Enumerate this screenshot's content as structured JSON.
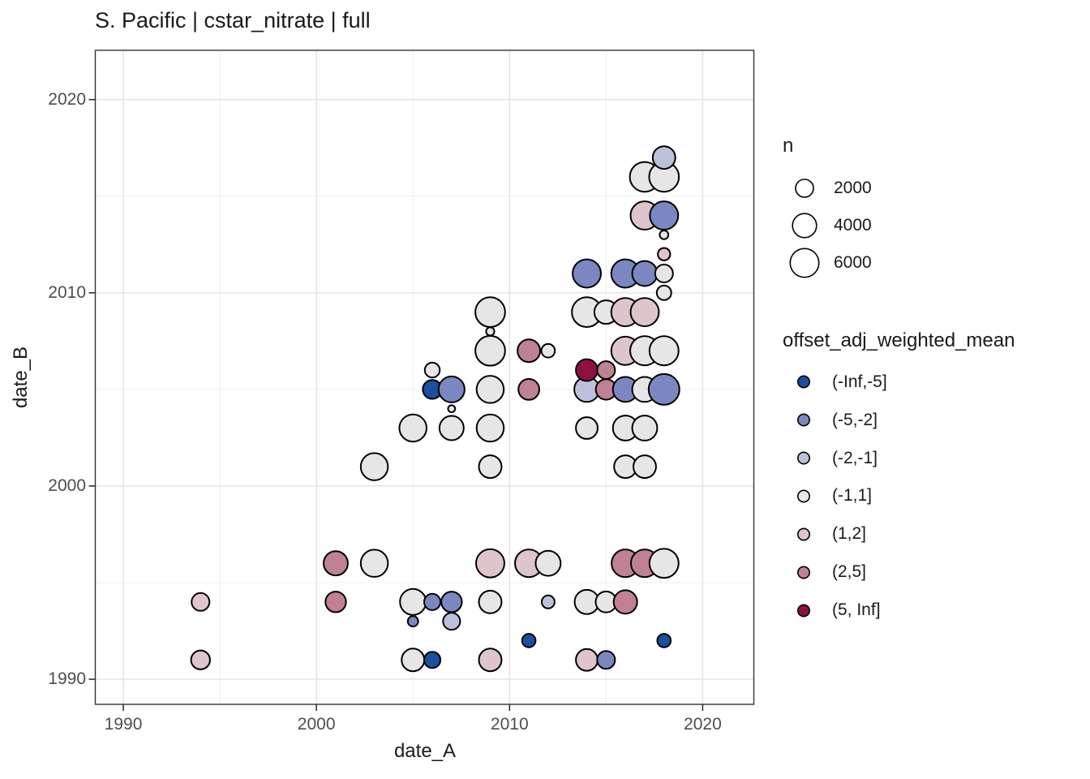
{
  "title": "S. Pacific | cstar_nitrate | full",
  "axes": {
    "x": {
      "label": "date_A",
      "ticks": [
        1990,
        2000,
        2010,
        2020
      ],
      "minor_ticks": [
        1995,
        2005,
        2015
      ]
    },
    "y": {
      "label": "date_B",
      "ticks": [
        1990,
        2000,
        2010,
        2020
      ],
      "minor_ticks": [
        1995,
        2005,
        2015
      ]
    }
  },
  "legend": {
    "size": {
      "title": "n",
      "entries": [
        {
          "label": "2000",
          "n": 2000
        },
        {
          "label": "4000",
          "n": 4000
        },
        {
          "label": "6000",
          "n": 6000
        }
      ]
    },
    "color": {
      "title": "offset_adj_weighted_mean",
      "entries": [
        {
          "label": "(-Inf,-5]"
        },
        {
          "label": "(-5,-2]"
        },
        {
          "label": "(-2,-1]"
        },
        {
          "label": "(-1,1]"
        },
        {
          "label": "(1,2]"
        },
        {
          "label": "(2,5]"
        },
        {
          "label": "(5, Inf]"
        }
      ]
    }
  },
  "chart_data": {
    "type": "scatter",
    "title": "S. Pacific | cstar_nitrate | full",
    "xlabel": "date_A",
    "ylabel": "date_B",
    "xlim": [
      1988.55,
      2022.65
    ],
    "ylim": [
      1988.7,
      2022.55
    ],
    "grid": true,
    "legend_position": "right",
    "size_legend_values": [
      2000,
      4000,
      6000
    ],
    "categories": [
      {
        "label": "(-Inf,-5]",
        "color": "#1b4fa0"
      },
      {
        "label": "(-5,-2]",
        "color": "#7b87c0"
      },
      {
        "label": "(-2,-1]",
        "color": "#bcc0da"
      },
      {
        "label": "(-1,1]",
        "color": "#e6e6e6"
      },
      {
        "label": "(1,2]",
        "color": "#ddc5cb"
      },
      {
        "label": "(2,5]",
        "color": "#c08192"
      },
      {
        "label": "(5, Inf]",
        "color": "#8e1043"
      }
    ],
    "points": [
      {
        "x": 1994,
        "y": 1991,
        "cat": "(1,2]",
        "n": 2300
      },
      {
        "x": 1994,
        "y": 1994,
        "cat": "(1,2]",
        "n": 2000
      },
      {
        "x": 2001,
        "y": 1994,
        "cat": "(2,5]",
        "n": 2800
      },
      {
        "x": 2001,
        "y": 1996,
        "cat": "(2,5]",
        "n": 4100
      },
      {
        "x": 2003,
        "y": 1996,
        "cat": "(-1,1]",
        "n": 5300
      },
      {
        "x": 2003,
        "y": 2001,
        "cat": "(-1,1]",
        "n": 5300
      },
      {
        "x": 2005,
        "y": 1991,
        "cat": "(-1,1]",
        "n": 3500
      },
      {
        "x": 2005,
        "y": 1993,
        "cat": "(-5,-2]",
        "n": 500
      },
      {
        "x": 2005,
        "y": 1994,
        "cat": "(-1,1]",
        "n": 4800
      },
      {
        "x": 2005,
        "y": 2003,
        "cat": "(-1,1]",
        "n": 5300
      },
      {
        "x": 2006,
        "y": 1991,
        "cat": "(-Inf,-5]",
        "n": 1600
      },
      {
        "x": 2006,
        "y": 1994,
        "cat": "(-5,-2]",
        "n": 1600
      },
      {
        "x": 2006,
        "y": 2005,
        "cat": "(-Inf,-5]",
        "n": 2300
      },
      {
        "x": 2006,
        "y": 2006,
        "cat": "(-1,1]",
        "n": 1300
      },
      {
        "x": 2007,
        "y": 1993,
        "cat": "(-2,-1]",
        "n": 1800
      },
      {
        "x": 2007,
        "y": 1994,
        "cat": "(-5,-2]",
        "n": 2800
      },
      {
        "x": 2007,
        "y": 2003,
        "cat": "(-1,1]",
        "n": 4100
      },
      {
        "x": 2007,
        "y": 2004,
        "cat": "(-1,1]",
        "n": 150
      },
      {
        "x": 2007,
        "y": 2005,
        "cat": "(-5,-2]",
        "n": 4800
      },
      {
        "x": 2009,
        "y": 1991,
        "cat": "(1,2]",
        "n": 3500
      },
      {
        "x": 2009,
        "y": 1994,
        "cat": "(-1,1]",
        "n": 3500
      },
      {
        "x": 2009,
        "y": 1996,
        "cat": "(1,2]",
        "n": 5800
      },
      {
        "x": 2009,
        "y": 2001,
        "cat": "(-1,1]",
        "n": 3500
      },
      {
        "x": 2009,
        "y": 2003,
        "cat": "(-1,1]",
        "n": 5300
      },
      {
        "x": 2009,
        "y": 2005,
        "cat": "(-1,1]",
        "n": 5300
      },
      {
        "x": 2009,
        "y": 2007,
        "cat": "(-1,1]",
        "n": 6500
      },
      {
        "x": 2009,
        "y": 2008,
        "cat": "(-1,1]",
        "n": 250
      },
      {
        "x": 2009,
        "y": 2009,
        "cat": "(-1,1]",
        "n": 6500
      },
      {
        "x": 2011,
        "y": 1992,
        "cat": "(-Inf,-5]",
        "n": 1000
      },
      {
        "x": 2011,
        "y": 1996,
        "cat": "(1,2]",
        "n": 5500
      },
      {
        "x": 2011,
        "y": 2005,
        "cat": "(2,5]",
        "n": 2900
      },
      {
        "x": 2011,
        "y": 2007,
        "cat": "(2,5]",
        "n": 3500
      },
      {
        "x": 2012,
        "y": 1994,
        "cat": "(-2,-1]",
        "n": 900
      },
      {
        "x": 2012,
        "y": 1996,
        "cat": "(-1,1]",
        "n": 4400
      },
      {
        "x": 2012,
        "y": 2007,
        "cat": "(-1,1]",
        "n": 1000
      },
      {
        "x": 2014,
        "y": 1991,
        "cat": "(1,2]",
        "n": 3200
      },
      {
        "x": 2014,
        "y": 1994,
        "cat": "(-1,1]",
        "n": 4100
      },
      {
        "x": 2014,
        "y": 2003,
        "cat": "(-1,1]",
        "n": 3200
      },
      {
        "x": 2014,
        "y": 2005,
        "cat": "(-2,-1]",
        "n": 4400
      },
      {
        "x": 2014,
        "y": 2006,
        "cat": "(5, Inf]",
        "n": 3200
      },
      {
        "x": 2014,
        "y": 2009,
        "cat": "(-1,1]",
        "n": 6500
      },
      {
        "x": 2014,
        "y": 2011,
        "cat": "(-5,-2]",
        "n": 5800
      },
      {
        "x": 2015,
        "y": 1991,
        "cat": "(-5,-2]",
        "n": 2000
      },
      {
        "x": 2015,
        "y": 1994,
        "cat": "(-1,1]",
        "n": 2900
      },
      {
        "x": 2015,
        "y": 2005,
        "cat": "(2,5]",
        "n": 2800
      },
      {
        "x": 2015,
        "y": 2006,
        "cat": "(2,5]",
        "n": 2000
      },
      {
        "x": 2015,
        "y": 2009,
        "cat": "(-1,1]",
        "n": 3800
      },
      {
        "x": 2016,
        "y": 1994,
        "cat": "(2,5]",
        "n": 3800
      },
      {
        "x": 2016,
        "y": 1996,
        "cat": "(2,5]",
        "n": 5500
      },
      {
        "x": 2016,
        "y": 2001,
        "cat": "(-1,1]",
        "n": 3500
      },
      {
        "x": 2016,
        "y": 2003,
        "cat": "(-1,1]",
        "n": 4400
      },
      {
        "x": 2016,
        "y": 2005,
        "cat": "(-5,-2]",
        "n": 4400
      },
      {
        "x": 2016,
        "y": 2007,
        "cat": "(1,2]",
        "n": 5800
      },
      {
        "x": 2016,
        "y": 2009,
        "cat": "(1,2]",
        "n": 5800
      },
      {
        "x": 2016,
        "y": 2011,
        "cat": "(-5,-2]",
        "n": 5800
      },
      {
        "x": 2017,
        "y": 1996,
        "cat": "(2,5]",
        "n": 5500
      },
      {
        "x": 2017,
        "y": 2001,
        "cat": "(-1,1]",
        "n": 3500
      },
      {
        "x": 2017,
        "y": 2003,
        "cat": "(-1,1]",
        "n": 4400
      },
      {
        "x": 2017,
        "y": 2005,
        "cat": "(-1,1]",
        "n": 4400
      },
      {
        "x": 2017,
        "y": 2007,
        "cat": "(-1,1]",
        "n": 6200
      },
      {
        "x": 2017,
        "y": 2009,
        "cat": "(1,2]",
        "n": 5800
      },
      {
        "x": 2017,
        "y": 2011,
        "cat": "(-5,-2]",
        "n": 4400
      },
      {
        "x": 2017,
        "y": 2014,
        "cat": "(1,2]",
        "n": 5800
      },
      {
        "x": 2017,
        "y": 2016,
        "cat": "(-1,1]",
        "n": 6500
      },
      {
        "x": 2018,
        "y": 1992,
        "cat": "(-Inf,-5]",
        "n": 1000
      },
      {
        "x": 2018,
        "y": 1996,
        "cat": "(-1,1]",
        "n": 6200
      },
      {
        "x": 2018,
        "y": 2005,
        "cat": "(-5,-2]",
        "n": 7000
      },
      {
        "x": 2018,
        "y": 2007,
        "cat": "(-1,1]",
        "n": 6200
      },
      {
        "x": 2018,
        "y": 2010,
        "cat": "(-1,1]",
        "n": 1200
      },
      {
        "x": 2018,
        "y": 2011,
        "cat": "(-1,1]",
        "n": 2000
      },
      {
        "x": 2018,
        "y": 2012,
        "cat": "(1,2]",
        "n": 800
      },
      {
        "x": 2018,
        "y": 2013,
        "cat": "(-1,1]",
        "n": 300
      },
      {
        "x": 2018,
        "y": 2014,
        "cat": "(-5,-2]",
        "n": 5800
      },
      {
        "x": 2018,
        "y": 2016,
        "cat": "(-1,1]",
        "n": 6500
      },
      {
        "x": 2018,
        "y": 2017,
        "cat": "(-2,-1]",
        "n": 3500
      }
    ]
  }
}
